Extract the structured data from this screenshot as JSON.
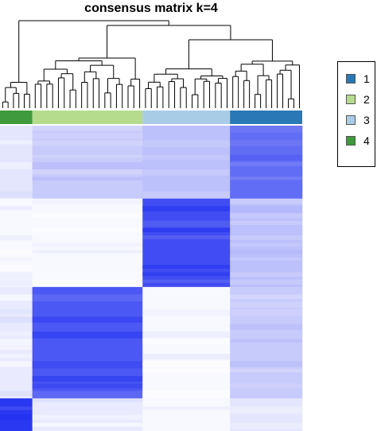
{
  "chart_data": {
    "type": "heatmap",
    "title": "consensus matrix k=4",
    "k": 4,
    "legend": {
      "position": "right",
      "items": [
        {
          "label": "1",
          "color": "#2a78b5"
        },
        {
          "label": "2",
          "color": "#b4dc8c"
        },
        {
          "label": "3",
          "color": "#a9cce6"
        },
        {
          "label": "4",
          "color": "#3e9a3a"
        }
      ]
    },
    "cluster_order": [
      "4",
      "2",
      "3",
      "1"
    ],
    "cluster_sizes": [
      17,
      58,
      46,
      38
    ],
    "color_scale": {
      "low": "#ffffff",
      "high": "#1f2ef0",
      "min": 0,
      "max": 1
    },
    "consensus_blocks": [
      {
        "rows": "4",
        "cols": "4",
        "value": 0.95
      },
      {
        "rows": "2",
        "cols": "2",
        "value": 0.8
      },
      {
        "rows": "3",
        "cols": "3",
        "value": 0.85
      },
      {
        "rows": "1",
        "cols": "1",
        "value": 0.7
      },
      {
        "rows": "2",
        "cols": "1",
        "value": 0.25
      },
      {
        "rows": "3",
        "cols": "1",
        "value": 0.3
      },
      {
        "rows": "4",
        "cols": "2",
        "value": 0.1
      },
      {
        "rows": "4",
        "cols": "1",
        "value": 0.12
      }
    ],
    "dendrogram": true,
    "annotation_bar": true
  }
}
